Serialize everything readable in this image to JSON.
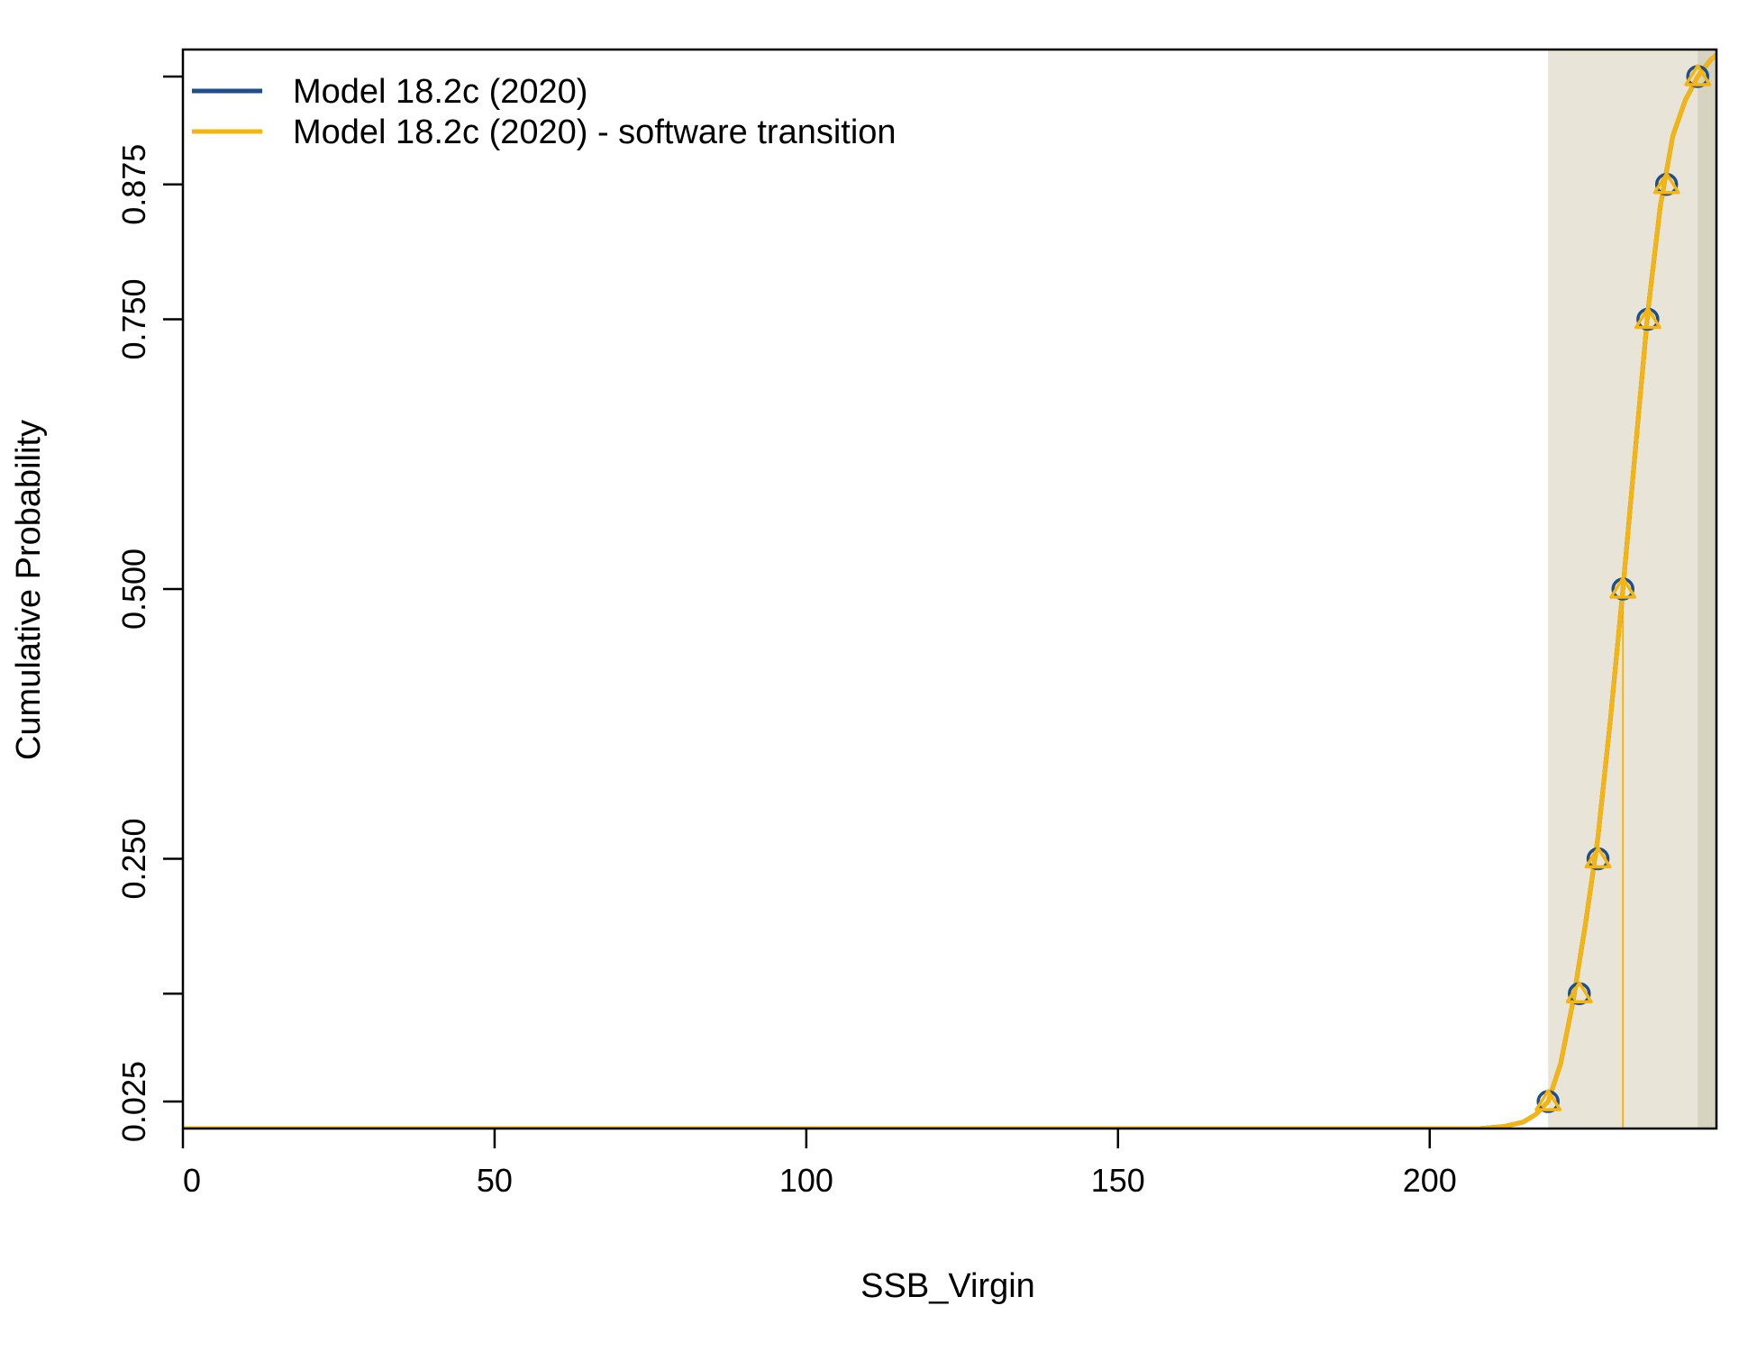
{
  "chart_data": {
    "type": "line",
    "xlabel": "SSB_Virgin",
    "ylabel": "Cumulative Probability",
    "xlim": [
      0,
      246
    ],
    "ylim": [
      0,
      1
    ],
    "x_ticks": [
      0,
      50,
      100,
      150,
      200
    ],
    "x_tick_labels": [
      "0",
      "50",
      "100",
      "150",
      "200"
    ],
    "y_ticks": [
      0.025,
      0.125,
      0.25,
      0.5,
      0.75,
      0.875,
      0.975
    ],
    "y_tick_labels": [
      "0.025",
      "",
      "0.250",
      "0.500",
      "0.750",
      "0.875",
      ""
    ],
    "median_x": 231.0,
    "shade": {
      "from": 219.0,
      "to": 246
    },
    "dark_shade": {
      "from": 243.0,
      "to": 246
    },
    "legend_position": "top-left",
    "series": [
      {
        "name": "Model 18.2c (2020)",
        "color": "#1f4e8c",
        "marker": "circle",
        "curve_x": [
          0,
          208,
          212,
          215,
          217,
          219,
          221,
          223,
          225,
          227,
          229,
          231,
          233,
          235,
          237,
          239,
          241,
          243,
          245,
          246
        ],
        "curve_y": [
          0,
          0,
          0.002,
          0.006,
          0.013,
          0.025,
          0.06,
          0.118,
          0.19,
          0.27,
          0.38,
          0.5,
          0.63,
          0.757,
          0.855,
          0.92,
          0.953,
          0.975,
          0.99,
          0.995
        ],
        "quantile_x": [
          219.0,
          224.0,
          227.0,
          231.0,
          235.0,
          238.0,
          243.0
        ],
        "quantile_y": [
          0.025,
          0.125,
          0.25,
          0.5,
          0.75,
          0.875,
          0.975
        ]
      },
      {
        "name": "Model 18.2c (2020) - software transition",
        "color": "#f5b50e",
        "marker": "triangle",
        "curve_x": [
          0,
          208,
          212,
          215,
          217,
          219,
          221,
          223,
          225,
          227,
          229,
          231,
          233,
          235,
          237,
          239,
          241,
          243,
          245,
          246
        ],
        "curve_y": [
          0,
          0,
          0.002,
          0.006,
          0.013,
          0.025,
          0.06,
          0.118,
          0.19,
          0.27,
          0.38,
          0.5,
          0.63,
          0.757,
          0.855,
          0.92,
          0.953,
          0.975,
          0.99,
          0.995
        ],
        "quantile_x": [
          219.0,
          224.0,
          227.0,
          231.0,
          235.0,
          238.0,
          243.0
        ],
        "quantile_y": [
          0.025,
          0.125,
          0.25,
          0.5,
          0.75,
          0.875,
          0.975
        ]
      }
    ]
  }
}
